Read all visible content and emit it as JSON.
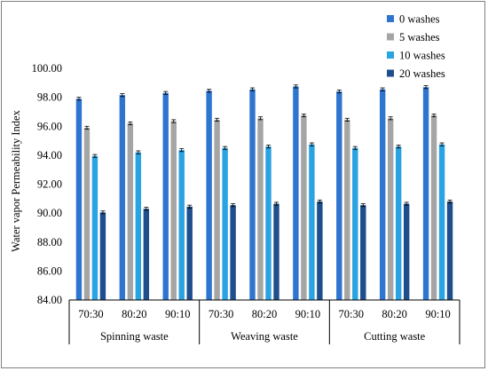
{
  "chart_data": {
    "type": "bar",
    "title": "",
    "xlabel": "",
    "ylabel": "Water vapor Permeability Index",
    "ylim": [
      84,
      100
    ],
    "yticks": [
      "84.00",
      "86.00",
      "88.00",
      "90.00",
      "92.00",
      "94.00",
      "96.00",
      "98.00",
      "100.00"
    ],
    "grid": false,
    "legend_position": "top-right",
    "groups": [
      "Spinning waste",
      "Weaving waste",
      "Cutting waste"
    ],
    "categories": [
      "70:30",
      "80:20",
      "90:10",
      "70:30",
      "80:20",
      "90:10",
      "70:30",
      "80:20",
      "90:10"
    ],
    "error_bar": 0.1,
    "series": [
      {
        "name": "0 washes",
        "color": "#2e75d0",
        "values": [
          97.9,
          98.15,
          98.3,
          98.45,
          98.55,
          98.75,
          98.4,
          98.55,
          98.7
        ]
      },
      {
        "name": "5 washes",
        "color": "#a5a5a5",
        "values": [
          95.9,
          96.2,
          96.35,
          96.45,
          96.55,
          96.75,
          96.45,
          96.55,
          96.75
        ]
      },
      {
        "name": "10 washes",
        "color": "#2aa3e2",
        "values": [
          93.95,
          94.2,
          94.35,
          94.5,
          94.6,
          94.75,
          94.5,
          94.6,
          94.75
        ]
      },
      {
        "name": "20 washes",
        "color": "#1f4e8c",
        "values": [
          90.05,
          90.3,
          90.45,
          90.55,
          90.65,
          90.8,
          90.55,
          90.65,
          90.8
        ]
      }
    ]
  }
}
